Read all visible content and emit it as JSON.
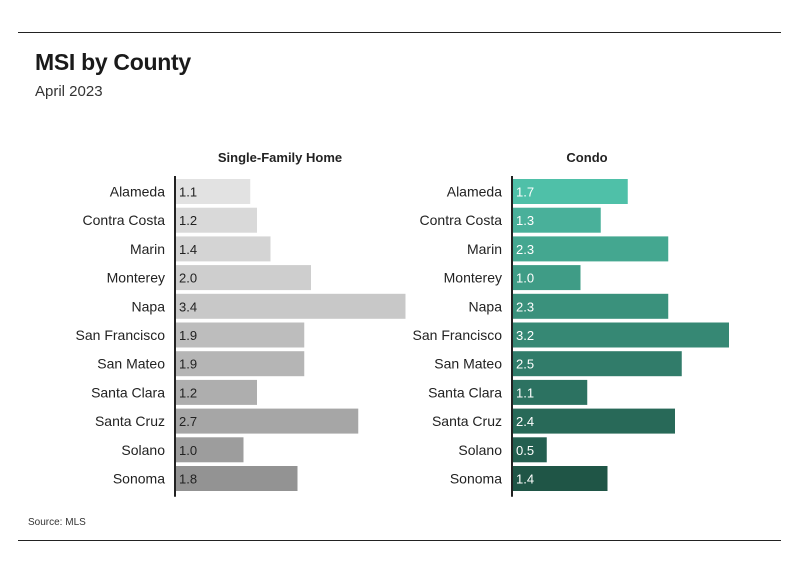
{
  "title": "MSI by County",
  "subtitle": "April 2023",
  "source": "Source: MLS",
  "chart_data": [
    {
      "type": "bar",
      "orientation": "horizontal",
      "title": "Single-Family Home",
      "categories": [
        "Alameda",
        "Contra Costa",
        "Marin",
        "Monterey",
        "Napa",
        "San Francisco",
        "San Mateo",
        "Santa Clara",
        "Santa Cruz",
        "Solano",
        "Sonoma"
      ],
      "values": [
        1.1,
        1.2,
        1.4,
        2.0,
        3.4,
        1.9,
        1.9,
        1.2,
        2.7,
        1.0,
        1.8
      ],
      "labels": [
        "1.1",
        "1.2",
        "1.4",
        "2.0",
        "3.4",
        "1.9",
        "1.9",
        "1.2",
        "2.7",
        "1.0",
        "1.8"
      ],
      "colors": [
        "#e2e2e2",
        "#d9d9d9",
        "#d4d4d4",
        "#cecece",
        "#c8c8c8",
        "#bdbdbd",
        "#b5b5b5",
        "#aeaeae",
        "#a6a6a6",
        "#9d9d9d",
        "#939393"
      ],
      "label_color": "#222222",
      "grid": false
    },
    {
      "type": "bar",
      "orientation": "horizontal",
      "title": "Condo",
      "categories": [
        "Alameda",
        "Contra Costa",
        "Marin",
        "Monterey",
        "Napa",
        "San Francisco",
        "San Mateo",
        "Santa Clara",
        "Santa Cruz",
        "Solano",
        "Sonoma"
      ],
      "values": [
        1.7,
        1.3,
        2.3,
        1.0,
        2.3,
        3.2,
        2.5,
        1.1,
        2.4,
        0.5,
        1.4
      ],
      "labels": [
        "1.7",
        "1.3",
        "2.3",
        "1.0",
        "2.3",
        "3.2",
        "2.5",
        "1.1",
        "2.4",
        "0.5",
        "1.4"
      ],
      "colors": [
        "#4fc0a8",
        "#49b09a",
        "#44a790",
        "#3f9c86",
        "#3a917c",
        "#368874",
        "#317c6a",
        "#2c7261",
        "#286958",
        "#245f50",
        "#1f5546"
      ],
      "label_color": "#ffffff",
      "grid": false
    }
  ]
}
